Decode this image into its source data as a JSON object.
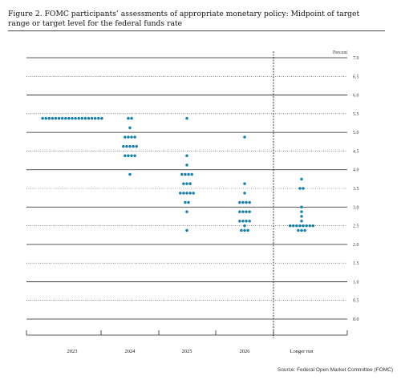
{
  "figure": {
    "title": "Figure 2.  FOMC participants’ assessments of appropriate monetary policy:  Midpoint of target range or target level for the federal funds rate",
    "source": "Source: Federal Open Market Committee (FOMC)"
  },
  "chart_data": {
    "type": "scatter",
    "title": "",
    "ylabel": "Percent",
    "ylim": [
      0.0,
      7.0
    ],
    "yticks": [
      "0.0",
      "0.5",
      "1.0",
      "1.5",
      "2.0",
      "2.5",
      "3.0",
      "3.5",
      "4.0",
      "4.5",
      "5.0",
      "5.5",
      "6.0",
      "6.5",
      "7.0"
    ],
    "categories": [
      "2023",
      "2024",
      "2025",
      "2026",
      "Longer run"
    ],
    "grid": true,
    "colors": {
      "dot": "#1a7fa6",
      "solid_grid": "#222222",
      "dotted_grid": "#444444"
    },
    "dots": [
      {
        "category": "2023",
        "values": [
          {
            "y": 5.375,
            "count": 19
          }
        ]
      },
      {
        "category": "2024",
        "values": [
          {
            "y": 5.375,
            "count": 2
          },
          {
            "y": 5.125,
            "count": 1
          },
          {
            "y": 4.875,
            "count": 4
          },
          {
            "y": 4.625,
            "count": 5
          },
          {
            "y": 4.375,
            "count": 4
          },
          {
            "y": 3.875,
            "count": 1
          }
        ]
      },
      {
        "category": "2025",
        "values": [
          {
            "y": 5.375,
            "count": 1
          },
          {
            "y": 4.375,
            "count": 1
          },
          {
            "y": 4.125,
            "count": 1
          },
          {
            "y": 3.875,
            "count": 4
          },
          {
            "y": 3.625,
            "count": 3
          },
          {
            "y": 3.375,
            "count": 5
          },
          {
            "y": 3.125,
            "count": 2
          },
          {
            "y": 2.875,
            "count": 1
          },
          {
            "y": 2.375,
            "count": 1
          }
        ]
      },
      {
        "category": "2026",
        "values": [
          {
            "y": 4.875,
            "count": 1
          },
          {
            "y": 3.625,
            "count": 1
          },
          {
            "y": 3.375,
            "count": 1
          },
          {
            "y": 3.125,
            "count": 4
          },
          {
            "y": 2.875,
            "count": 4
          },
          {
            "y": 2.625,
            "count": 4
          },
          {
            "y": 2.5,
            "count": 1
          },
          {
            "y": 2.375,
            "count": 3
          }
        ]
      },
      {
        "category": "Longer run",
        "values": [
          {
            "y": 3.75,
            "count": 1
          },
          {
            "y": 3.5,
            "count": 2
          },
          {
            "y": 3.0,
            "count": 1
          },
          {
            "y": 2.875,
            "count": 1
          },
          {
            "y": 2.75,
            "count": 1
          },
          {
            "y": 2.625,
            "count": 1
          },
          {
            "y": 2.5,
            "count": 8
          },
          {
            "y": 2.375,
            "count": 3
          }
        ]
      }
    ]
  }
}
